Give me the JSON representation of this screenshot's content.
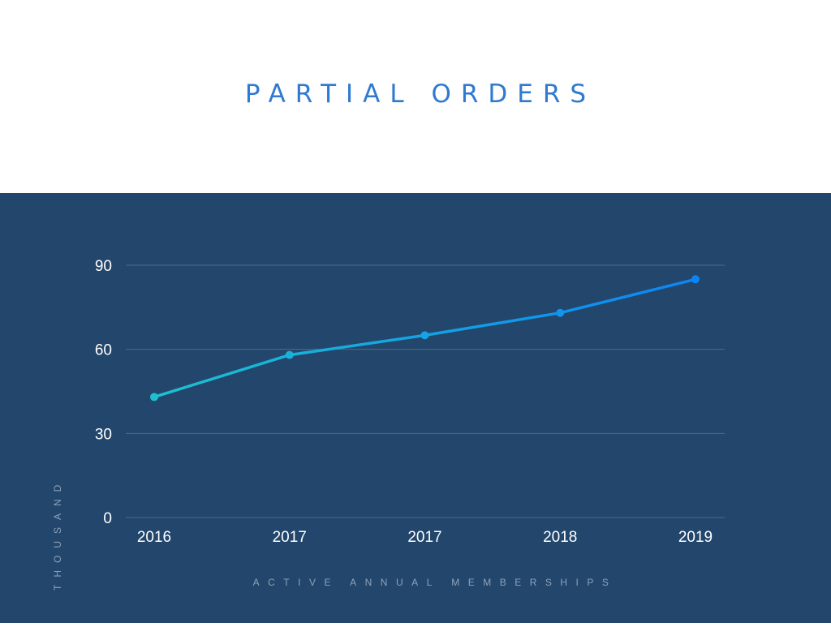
{
  "title": "PARTIAL ORDERS",
  "colors": {
    "background_top": "#ffffff",
    "panel": "#22466c",
    "title": "#2f7ad0",
    "grid": "#4d6a8c",
    "tick_text": "#ffffff",
    "axis_title": "#8fa2b8",
    "line_start": "#1ec0d0",
    "line_end": "#0b85f5"
  },
  "chart_data": {
    "type": "line",
    "categories": [
      "2016",
      "2017",
      "2017",
      "2018",
      "2019"
    ],
    "series": [
      {
        "values": [
          43,
          58,
          65,
          73,
          85
        ]
      }
    ],
    "ylabel": "THOUSAND",
    "xlabel": "ACTIVE ANNUAL MEMBERSHIPS",
    "ylim": [
      0,
      90
    ],
    "yticks": [
      "0",
      "30",
      "60",
      "90"
    ],
    "grid": true,
    "legend": "none"
  }
}
